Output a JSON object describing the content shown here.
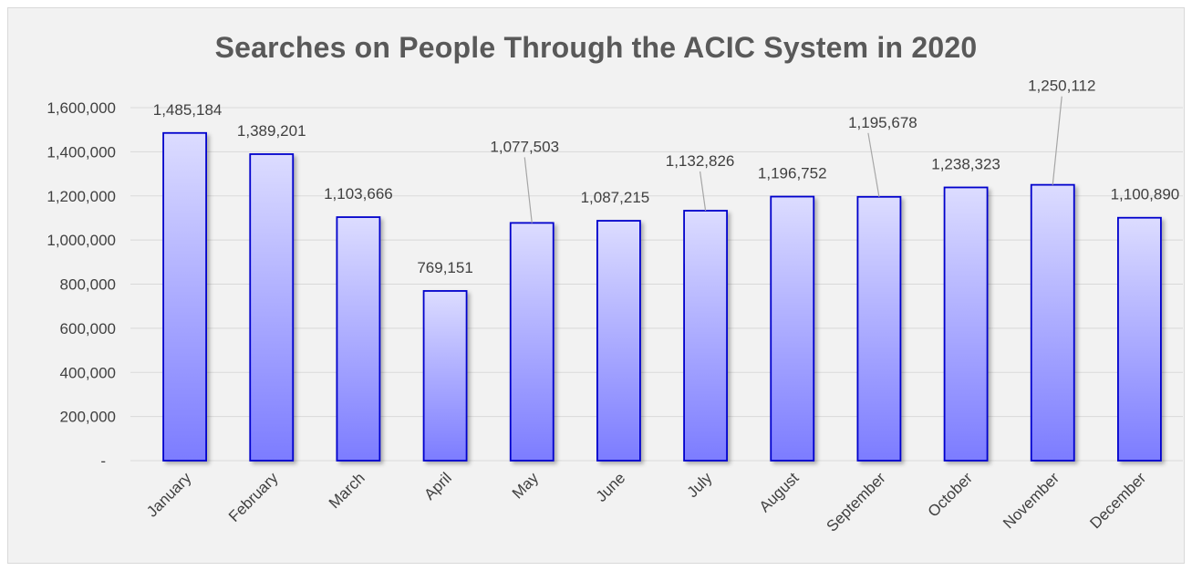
{
  "chart_data": {
    "type": "bar",
    "title": "Searches on People Through the ACIC System in 2020",
    "xlabel": "",
    "ylabel": "",
    "categories": [
      "January",
      "February",
      "March",
      "April",
      "May",
      "June",
      "July",
      "August",
      "September",
      "October",
      "November",
      "December"
    ],
    "values": [
      1485184,
      1389201,
      1103666,
      769151,
      1077503,
      1087215,
      1132826,
      1196752,
      1195678,
      1238323,
      1250112,
      1100890
    ],
    "value_labels": [
      "1,485,184",
      "1,389,201",
      "1,103,666",
      "769,151",
      "1,077,503",
      "1,087,215",
      "1,132,826",
      "1,196,752",
      "1,195,678",
      "1,238,323",
      "1,250,112",
      "1,100,890"
    ],
    "ylim": [
      0,
      1600000
    ],
    "yticks": [
      0,
      200000,
      400000,
      600000,
      800000,
      1000000,
      1200000,
      1400000,
      1600000
    ],
    "ytick_labels": [
      "-",
      "200,000",
      "400,000",
      "600,000",
      "800,000",
      "1,000,000",
      "1,200,000",
      "1,400,000",
      "1,600,000"
    ],
    "grid": true,
    "legend": "none",
    "colors": {
      "bar_top": "#dcdcff",
      "bar_bottom": "#7c7cff",
      "bar_border": "#0000cc",
      "grid": "#d9d9d9",
      "text": "#404040",
      "title": "#595959",
      "leader": "#a6a6a6",
      "background": "#f2f2f2"
    }
  }
}
